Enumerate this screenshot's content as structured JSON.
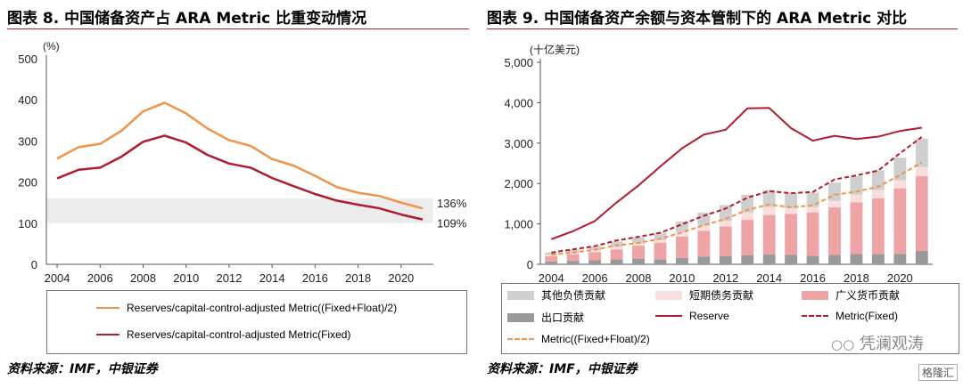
{
  "left": {
    "title": "图表 8. 中国储备资产占 ARA Metric 比重变动情况",
    "source": "资料来源：IMF，中银证券",
    "legend": [
      {
        "label": "Reserves/capital-control-adjusted Metric((Fixed+Float)/2)",
        "color": "#f0934a"
      },
      {
        "label": "Reserves/capital-control-adjusted Metric(Fixed)",
        "color": "#b01c2e"
      }
    ]
  },
  "right": {
    "title": "图表 9. 中国储备资产余额与资本管制下的 ARA Metric 对比",
    "source": "资料来源：IMF，中银证券",
    "legend": [
      {
        "label": "其他负债贡献",
        "color": "#cfcfcf",
        "kind": "bar"
      },
      {
        "label": "短期债务贡献",
        "color": "#f8dede",
        "kind": "bar"
      },
      {
        "label": "广义货币贡献",
        "color": "#eea4a4",
        "kind": "bar"
      },
      {
        "label": "出口贡献",
        "color": "#999999",
        "kind": "bar"
      },
      {
        "label": "Reserve",
        "color": "#b01c2e",
        "kind": "line"
      },
      {
        "label": "Metric(Fixed)",
        "color": "#b01c2e",
        "kind": "dashed"
      },
      {
        "label": "Metric((Fixed+Float)/2)",
        "color": "#f0934a",
        "kind": "dashed"
      }
    ]
  },
  "watermark": {
    "text": "凭澜观涛",
    "badge": "格隆汇"
  },
  "chart_data": [
    {
      "type": "line",
      "ylabel": "(%)",
      "ylim": [
        0,
        500
      ],
      "yticks": [
        0,
        100,
        200,
        300,
        400,
        500
      ],
      "xlim": [
        2003.5,
        2021.5
      ],
      "xticks": [
        "2004",
        "2006",
        "2008",
        "2010",
        "2012",
        "2014",
        "2016",
        "2018",
        "2020"
      ],
      "band": [
        100,
        160
      ],
      "x": [
        2004,
        2005,
        2006,
        2007,
        2008,
        2009,
        2010,
        2011,
        2012,
        2013,
        2014,
        2015,
        2016,
        2017,
        2018,
        2019,
        2020,
        2021
      ],
      "series": [
        {
          "name": "Reserves/capital-control-adjusted Metric((Fixed+Float)/2)",
          "color": "#f0934a",
          "values": [
            257,
            285,
            293,
            325,
            372,
            393,
            367,
            330,
            302,
            288,
            256,
            240,
            215,
            188,
            174,
            166,
            150,
            136
          ]
        },
        {
          "name": "Reserves/capital-control-adjusted Metric(Fixed)",
          "color": "#b01c2e",
          "values": [
            209,
            230,
            235,
            262,
            298,
            313,
            296,
            266,
            245,
            235,
            210,
            190,
            171,
            155,
            145,
            136,
            121,
            109
          ]
        }
      ],
      "end_labels": [
        "136%",
        "109%"
      ]
    },
    {
      "type": "bar",
      "ylabel": "(十亿美元)",
      "ylim": [
        0,
        5000
      ],
      "yticks": [
        "0",
        "1,000",
        "2,000",
        "3,000",
        "4,000",
        "5,000"
      ],
      "xlim": [
        2003.5,
        2021.5
      ],
      "xticks": [
        "2004",
        "2006",
        "2008",
        "2010",
        "2012",
        "2014",
        "2016",
        "2018",
        "2020"
      ],
      "x": [
        2004,
        2005,
        2006,
        2007,
        2008,
        2009,
        2010,
        2011,
        2012,
        2013,
        2014,
        2015,
        2016,
        2017,
        2018,
        2019,
        2020,
        2021
      ],
      "stacks": [
        {
          "name": "出口贡献",
          "color": "#999999",
          "values": [
            70,
            85,
            100,
            120,
            140,
            125,
            160,
            190,
            205,
            220,
            240,
            230,
            215,
            230,
            255,
            255,
            260,
            330
          ]
        },
        {
          "name": "广义货币贡献",
          "color": "#eea4a4",
          "values": [
            130,
            165,
            200,
            250,
            320,
            410,
            530,
            640,
            730,
            880,
            980,
            1020,
            1070,
            1180,
            1280,
            1380,
            1620,
            1850
          ]
        },
        {
          "name": "短期债务贡献",
          "color": "#f8dede",
          "values": [
            30,
            40,
            50,
            60,
            60,
            70,
            110,
            130,
            140,
            180,
            200,
            140,
            130,
            160,
            190,
            200,
            200,
            230
          ]
        },
        {
          "name": "其他负债贡献",
          "color": "#cfcfcf",
          "values": [
            60,
            80,
            100,
            130,
            150,
            180,
            260,
            320,
            390,
            440,
            420,
            380,
            360,
            450,
            460,
            490,
            560,
            700
          ]
        }
      ],
      "series": [
        {
          "name": "Reserve",
          "color": "#b01c2e",
          "dash": false,
          "values": [
            620,
            820,
            1070,
            1530,
            1950,
            2420,
            2870,
            3210,
            3330,
            3860,
            3870,
            3370,
            3060,
            3180,
            3100,
            3160,
            3300,
            3380
          ]
        },
        {
          "name": "Metric(Fixed)",
          "color": "#b01c2e",
          "dash": true,
          "values": [
            290,
            370,
            450,
            590,
            680,
            780,
            990,
            1200,
            1380,
            1650,
            1810,
            1760,
            1790,
            2100,
            2200,
            2320,
            2750,
            3150
          ]
        },
        {
          "name": "Metric((Fixed+Float)/2)",
          "color": "#f0934a",
          "dash": true,
          "values": [
            240,
            290,
            360,
            470,
            530,
            630,
            790,
            970,
            1120,
            1350,
            1480,
            1410,
            1460,
            1720,
            1800,
            1920,
            2210,
            2520
          ]
        }
      ]
    }
  ]
}
